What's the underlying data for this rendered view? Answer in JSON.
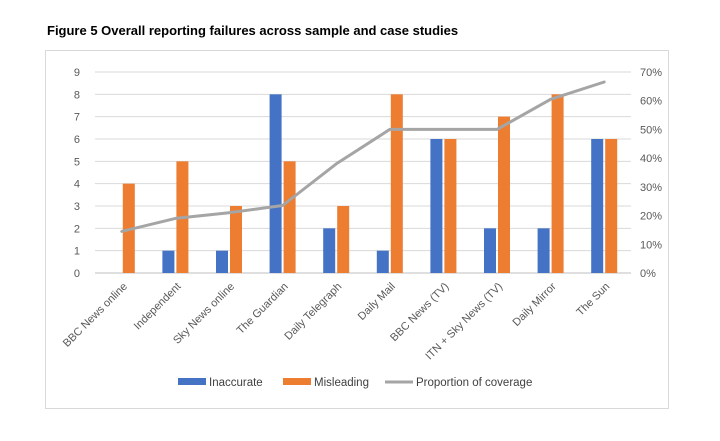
{
  "figure_title": "Figure 5 Overall reporting failures across sample and case studies",
  "chart_data": {
    "type": "bar",
    "categories": [
      "BBC News online",
      "Independent",
      "Sky News online",
      "The Guardian",
      "Daily Telegraph",
      "Daily Mail",
      "BBC News (TV)",
      "ITN + Sky News (TV)",
      "Daily Mirror",
      "The Sun"
    ],
    "series": [
      {
        "name": "Inaccurate",
        "type": "bar",
        "axis": "left",
        "color": "#4472c4",
        "values": [
          0,
          1,
          1,
          8,
          2,
          1,
          6,
          2,
          2,
          6
        ]
      },
      {
        "name": "Misleading",
        "type": "bar",
        "axis": "left",
        "color": "#ed7d31",
        "values": [
          4,
          5,
          3,
          5,
          3,
          8,
          6,
          7,
          8,
          6
        ]
      },
      {
        "name": "Proportion of coverage",
        "type": "line",
        "axis": "right",
        "color": "#a5a5a5",
        "values": [
          0.145,
          0.19,
          0.21,
          0.235,
          0.38,
          0.5,
          0.5,
          0.5,
          0.605,
          0.665
        ]
      }
    ],
    "ylim_left": [
      0,
      9
    ],
    "ylim_right": [
      0,
      0.7
    ],
    "left_ticks": [
      "0",
      "1",
      "2",
      "3",
      "4",
      "5",
      "6",
      "7",
      "8",
      "9"
    ],
    "right_ticks": [
      "0%",
      "10%",
      "20%",
      "30%",
      "40%",
      "50%",
      "60%",
      "70%"
    ],
    "grid": true,
    "legend": "bottom"
  }
}
